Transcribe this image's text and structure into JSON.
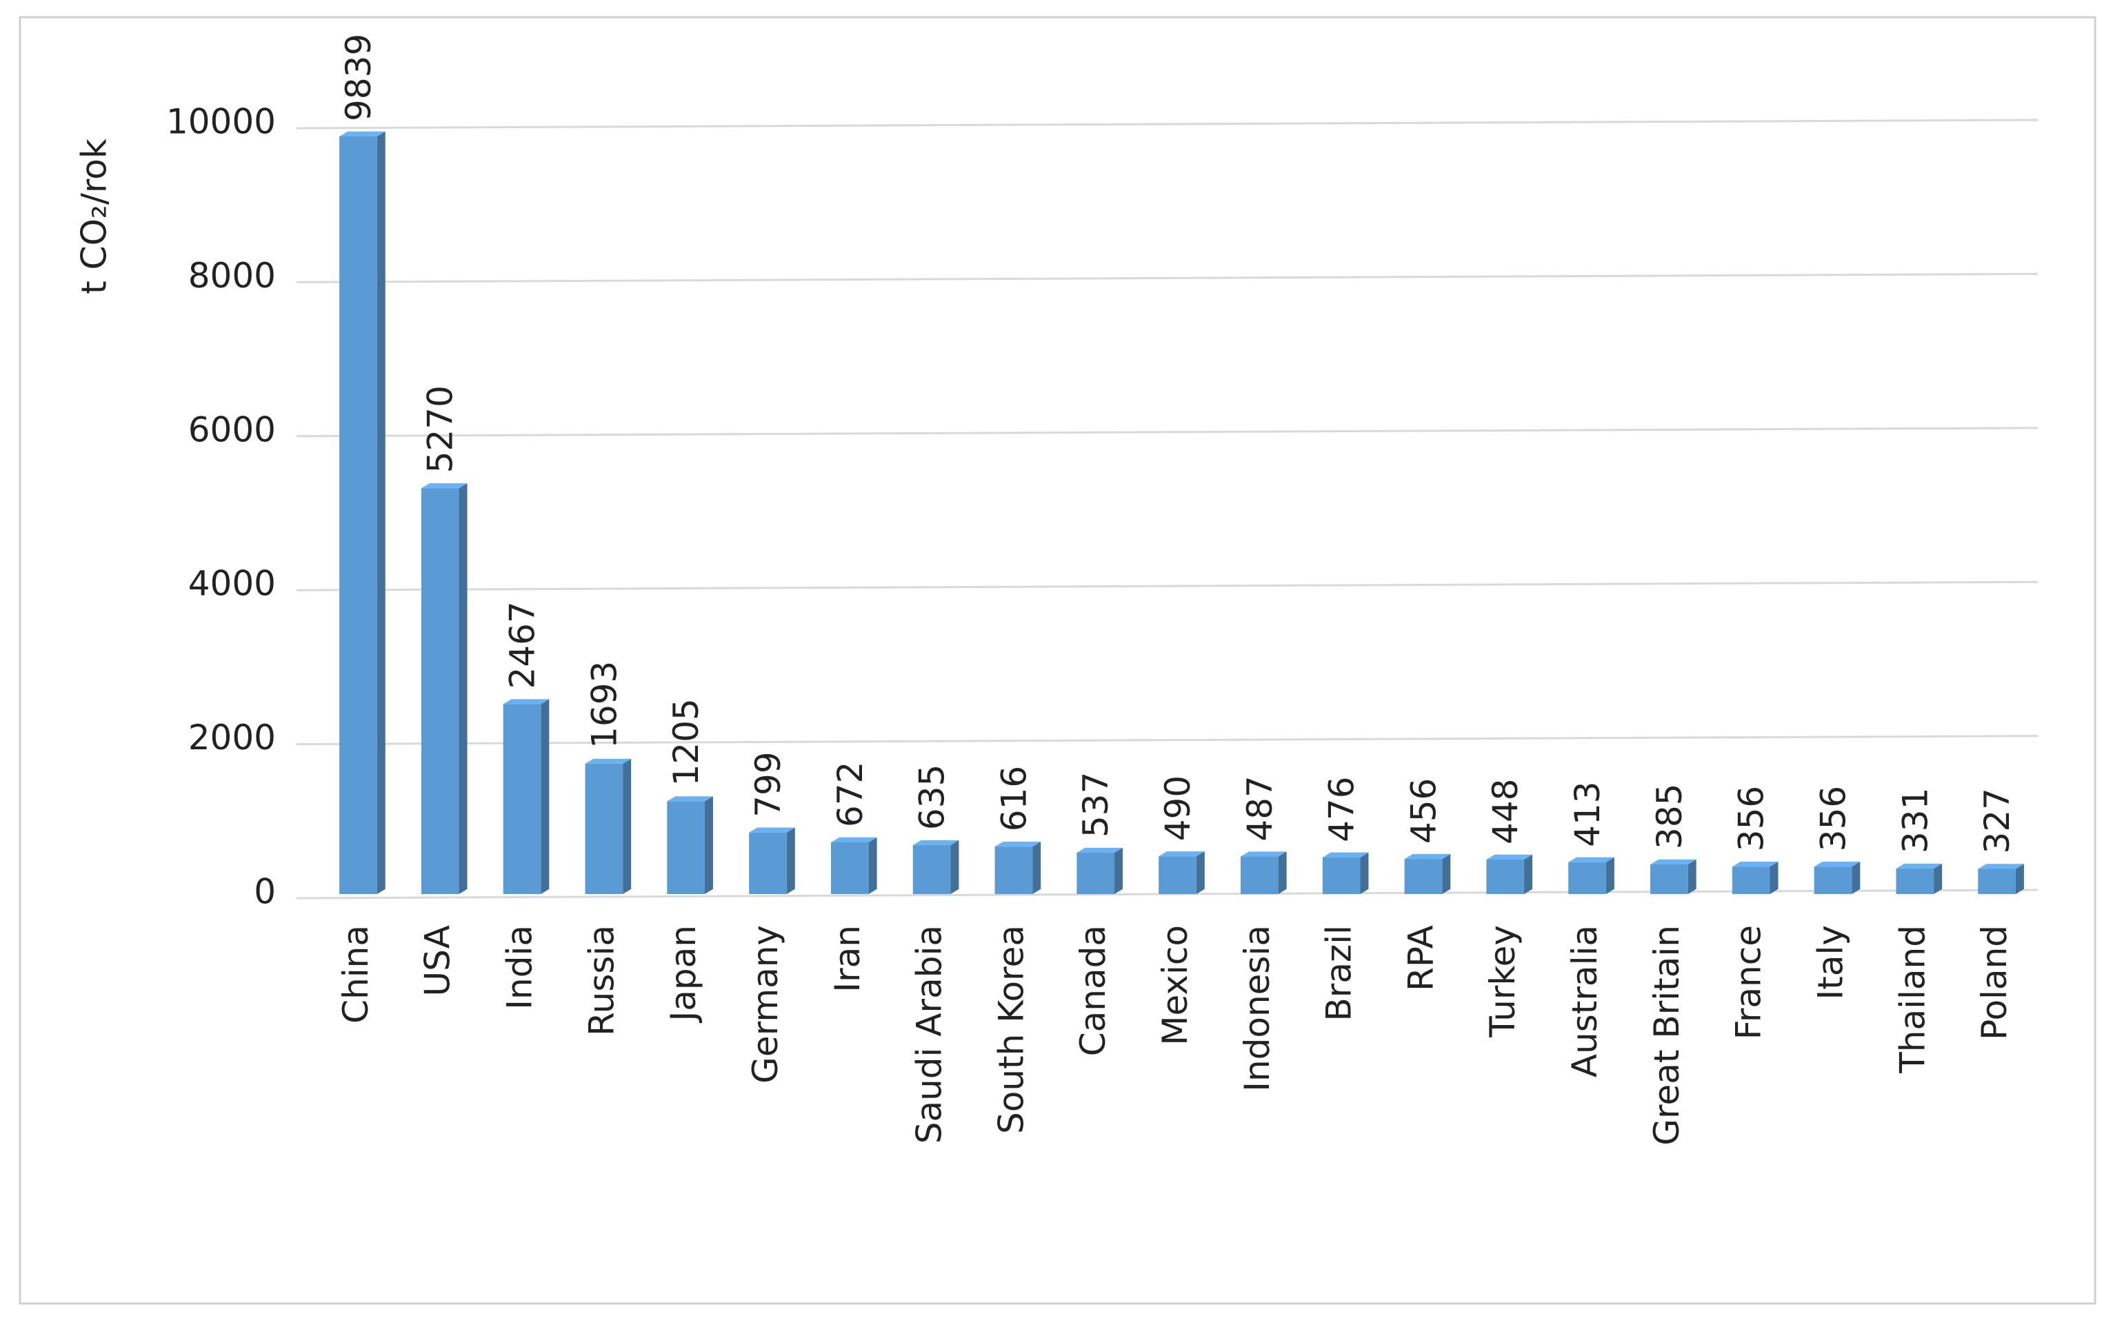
{
  "chart_data": {
    "type": "bar",
    "y_label": "t CO₂/rok",
    "categories": [
      "China",
      "USA",
      "India",
      "Russia",
      "Japan",
      "Germany",
      "Iran",
      "Saudi Arabia",
      "South Korea",
      "Canada",
      "Mexico",
      "Indonesia",
      "Brazil",
      "RPA",
      "Turkey",
      "Australia",
      "Great Britain",
      "France",
      "Italy",
      "Thailand",
      "Poland"
    ],
    "values": [
      9839,
      5270,
      2467,
      1693,
      1205,
      799,
      672,
      635,
      616,
      537,
      490,
      487,
      476,
      456,
      448,
      413,
      385,
      356,
      356,
      331,
      327
    ],
    "color": "#5b9bd5",
    "ylim": [
      0,
      10000
    ],
    "yticks": [
      0,
      2000,
      4000,
      6000,
      8000,
      10000
    ],
    "grid": true
  }
}
